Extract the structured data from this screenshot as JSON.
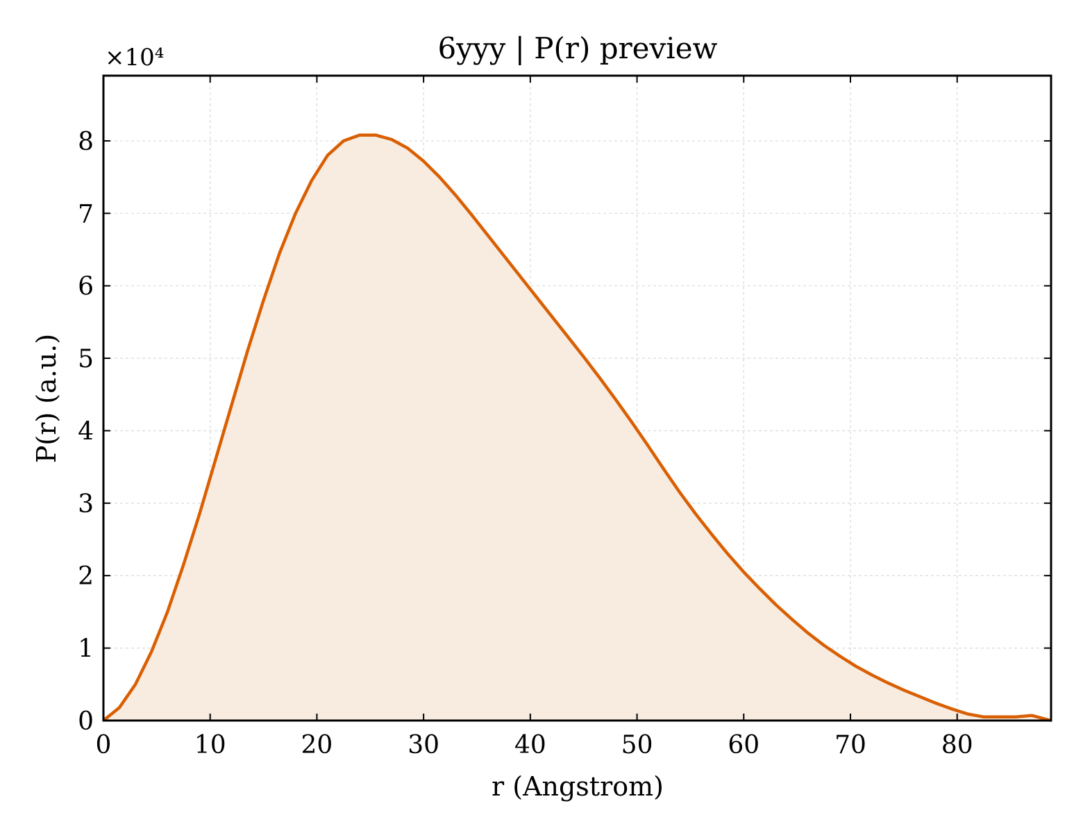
{
  "chart_data": {
    "type": "area",
    "title": "6yyy | P(r) preview",
    "xlabel": "r (Angstrom)",
    "ylabel": "P(r) (a.u.)",
    "y_offset_label": "×10⁴",
    "xlim": [
      0,
      88.8
    ],
    "ylim": [
      0,
      8.9
    ],
    "y_scale_factor": 10000,
    "xticks": [
      0,
      10,
      20,
      30,
      40,
      50,
      60,
      70,
      80
    ],
    "yticks": [
      0,
      1,
      2,
      3,
      4,
      5,
      6,
      7,
      8
    ],
    "grid": true,
    "line_color": "#d95f02",
    "fill_color": "#f8ebe0",
    "series": [
      {
        "x": [
          0,
          1.5,
          3,
          4.5,
          6,
          7.5,
          9,
          10.5,
          12,
          13.5,
          15,
          16.5,
          18,
          19.5,
          21,
          22.5,
          24,
          25.5,
          27,
          28.5,
          30,
          31.5,
          33,
          34.5,
          36,
          37.5,
          39,
          40.5,
          42,
          43.5,
          45,
          46.5,
          48,
          49.5,
          51,
          52.5,
          54,
          55.5,
          57,
          58.5,
          60,
          61.5,
          63,
          64.5,
          66,
          67.5,
          69,
          70.5,
          72,
          73.5,
          75,
          76.5,
          78,
          79.5,
          81,
          82.5,
          84,
          85.5,
          87,
          88.8
        ],
        "y": [
          0,
          0.18,
          0.5,
          0.95,
          1.5,
          2.15,
          2.85,
          3.6,
          4.35,
          5.1,
          5.8,
          6.45,
          7.0,
          7.45,
          7.8,
          8.0,
          8.08,
          8.08,
          8.02,
          7.9,
          7.72,
          7.5,
          7.25,
          6.98,
          6.7,
          6.42,
          6.14,
          5.86,
          5.58,
          5.3,
          5.02,
          4.73,
          4.43,
          4.12,
          3.8,
          3.47,
          3.15,
          2.85,
          2.57,
          2.3,
          2.05,
          1.82,
          1.6,
          1.4,
          1.21,
          1.04,
          0.89,
          0.75,
          0.63,
          0.52,
          0.42,
          0.33,
          0.24,
          0.16,
          0.09,
          0.05,
          0.05,
          0.05,
          0.07,
          0
        ]
      }
    ]
  }
}
